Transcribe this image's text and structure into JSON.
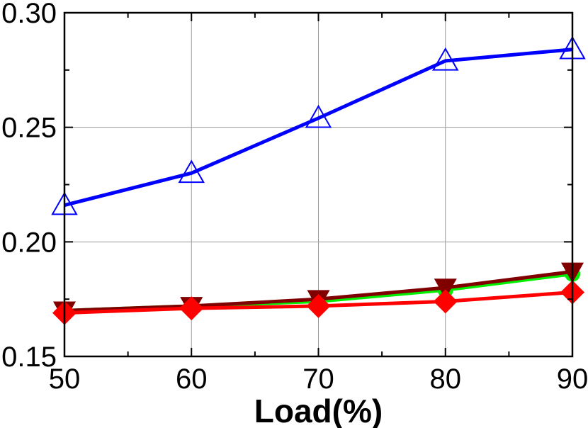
{
  "chart_data": {
    "type": "line",
    "title": "",
    "xlabel": "Load(%)",
    "ylabel": "",
    "x": [
      50,
      60,
      70,
      80,
      90
    ],
    "xlim": [
      50,
      90
    ],
    "ylim": [
      0.15,
      0.3
    ],
    "xticks": [
      50,
      60,
      70,
      80,
      90
    ],
    "xtick_labels": [
      "50",
      "60",
      "70",
      "80",
      "90"
    ],
    "yticks": [
      0.15,
      0.2,
      0.25,
      0.3
    ],
    "ytick_labels": [
      "0.15",
      "0.20",
      "0.25",
      "0.30"
    ],
    "grid": true,
    "legend": "none",
    "series": [
      {
        "color": "#0000ff",
        "marker": "triangle-up-open",
        "values": [
          0.216,
          0.23,
          0.254,
          0.279,
          0.284
        ]
      },
      {
        "color": "#00ee00",
        "marker": "circle",
        "values": [
          0.17,
          0.172,
          0.174,
          0.179,
          0.186
        ]
      },
      {
        "color": "#800000",
        "marker": "triangle-down",
        "values": [
          0.17,
          0.172,
          0.175,
          0.18,
          0.187
        ]
      },
      {
        "color": "#ff0000",
        "marker": "diamond",
        "values": [
          0.169,
          0.171,
          0.172,
          0.174,
          0.178
        ]
      }
    ]
  }
}
